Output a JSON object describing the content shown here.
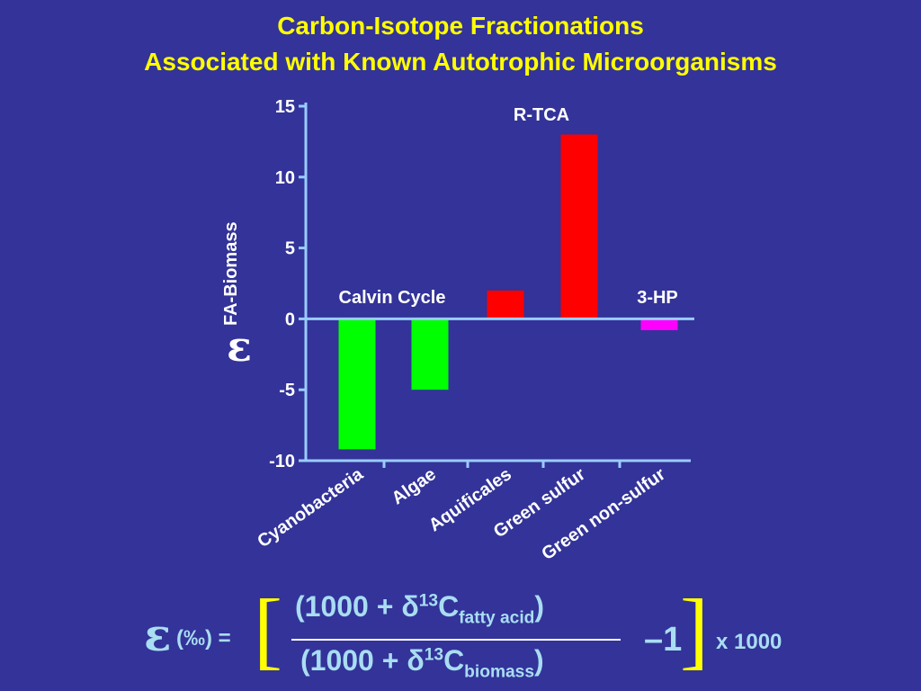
{
  "title_line1": "Carbon-Isotope Fractionations",
  "title_line2": "Associated with Known Autotrophic Microorganisms",
  "chart_data": {
    "type": "bar",
    "categories": [
      "Cyanobacteria",
      "Algae",
      "Aquificales",
      "Green sulfur",
      "Green non-sulfur"
    ],
    "values": [
      -9.2,
      -5.0,
      2.0,
      13.0,
      -0.8
    ],
    "colors": [
      "#00ff00",
      "#00ff00",
      "#ff0000",
      "#ff0000",
      "#ff00ff"
    ],
    "ylim": [
      -10,
      15
    ],
    "yticks": [
      "15",
      "10",
      "5",
      "0",
      "-5",
      "-10"
    ],
    "ytick_values": [
      15,
      10,
      5,
      0,
      -5,
      -10
    ],
    "ylabel_symbol": "ε",
    "ylabel_subscript": "FA-Biomass",
    "annotations": [
      "Calvin Cycle",
      "R-TCA",
      "3-HP"
    ],
    "colors_axis": "#99ccff",
    "text_color": "#ffffff"
  },
  "formula": {
    "lhs_symbol": "ε",
    "lhs_unit": "(‰) =",
    "bracket_open": "[",
    "bracket_close": "]",
    "num_prefix": "(1000 + δ",
    "num_sup": "13",
    "num_C": "C",
    "num_sub": "fatty acid",
    "num_close": ")",
    "den_prefix": "(1000 + δ",
    "den_sup": "13",
    "den_C": "C",
    "den_sub": "biomass",
    "den_close": ")",
    "minus_one": "–1",
    "times": "x 1000"
  }
}
